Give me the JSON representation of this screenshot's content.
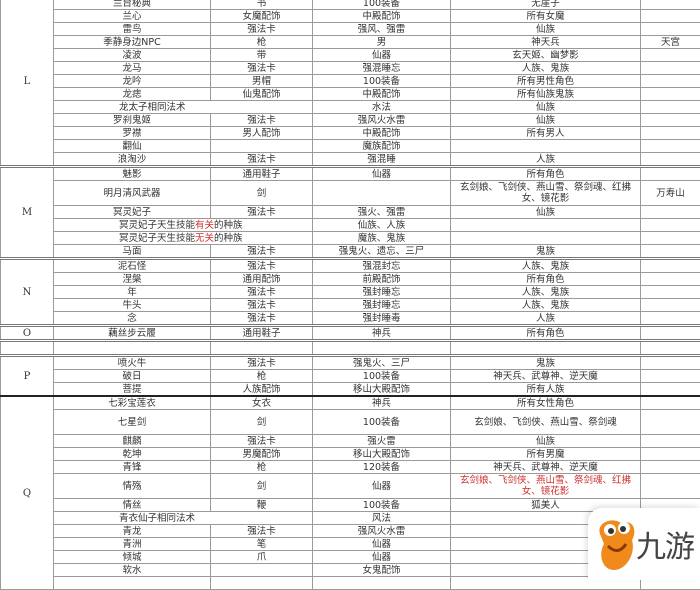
{
  "colors": {
    "highlight": "#d03030",
    "logo": "#f08a1c"
  },
  "watermark": {
    "logo_text": "九游"
  },
  "groups": [
    {
      "letter": "",
      "partial": true,
      "rows": [
        {
          "c": [
            "",
            "",
            "",
            "",
            ""
          ]
        }
      ]
    },
    {
      "letter": "L",
      "rows": [
        {
          "c": [
            "兰台秘典",
            "书",
            "100装备",
            "无崖子",
            ""
          ]
        },
        {
          "c": [
            "兰心",
            "女魔配饰",
            "中殿配饰",
            "所有女魔",
            ""
          ]
        },
        {
          "c": [
            "雷鸟",
            "强法卡",
            "强风、强雷",
            "仙族",
            ""
          ]
        },
        {
          "c": [
            "季静身边NPC",
            "枪",
            "男",
            "神天兵",
            "天宫"
          ]
        },
        {
          "c": [
            "凌波",
            "带",
            "仙器",
            "玄天姬、幽梦影",
            ""
          ]
        },
        {
          "c": [
            "龙马",
            "强法卡",
            "强混睡忘",
            "人族、鬼族",
            ""
          ]
        },
        {
          "c": [
            "龙吟",
            "男帽",
            "100装备",
            "所有男性角色",
            ""
          ]
        },
        {
          "c": [
            "龙痣",
            "仙鬼配饰",
            "中殿配饰",
            "所有仙族鬼族",
            ""
          ]
        },
        {
          "merge": true,
          "c": [
            "龙太子相同法术",
            "",
            "水法",
            "仙族",
            ""
          ]
        },
        {
          "c": [
            "罗刹鬼姬",
            "强法卡",
            "强风火水雷",
            "仙族",
            ""
          ]
        },
        {
          "c": [
            "罗襟",
            "男人配饰",
            "中殿配饰",
            "所有男人",
            ""
          ]
        },
        {
          "c": [
            "翻仙",
            "",
            "魔族配饰",
            "",
            ""
          ]
        },
        {
          "c": [
            "浪淘沙",
            "强法卡",
            "强混睡",
            "人族",
            ""
          ]
        }
      ]
    },
    {
      "letter": "M",
      "rows": [
        {
          "c": [
            "魅影",
            "通用鞋子",
            "仙器",
            "所有角色",
            ""
          ]
        },
        {
          "tall": true,
          "c": [
            "明月清风武器",
            "剑",
            "",
            "玄剑娘、飞剑侠、燕山雪、祭剑魂、红拂女、镜花影",
            "万寿山"
          ]
        },
        {
          "c": [
            "冥灵妃子",
            "强法卡",
            "强火、强雷",
            "仙族",
            ""
          ]
        },
        {
          "merge": true,
          "parts": [
            "冥灵妃子天生技能",
            "有关",
            "的种族"
          ],
          "c": [
            "",
            "",
            "仙族、人族",
            "",
            ""
          ]
        },
        {
          "merge": true,
          "parts": [
            "冥灵妃子天生技能",
            "无关",
            "的种族"
          ],
          "c": [
            "",
            "",
            "魔族、鬼族",
            "",
            ""
          ]
        },
        {
          "c": [
            "马面",
            "强法卡",
            "强鬼火、遗忘、三尸",
            "鬼族",
            ""
          ]
        }
      ]
    },
    {
      "letter": "N",
      "rows": [
        {
          "c": [
            "泥石怪",
            "强法卡",
            "强混封忘",
            "人族、鬼族",
            ""
          ]
        },
        {
          "c": [
            "涅槃",
            "通用配饰",
            "前殿配饰",
            "所有角色",
            ""
          ]
        },
        {
          "c": [
            "年",
            "强法卡",
            "强封睡忘",
            "人族、鬼族",
            ""
          ]
        },
        {
          "c": [
            "牛头",
            "强法卡",
            "强封睡忘",
            "人族、鬼族",
            ""
          ]
        },
        {
          "c": [
            "念",
            "强法卡",
            "强封睡毒",
            "人族",
            ""
          ]
        }
      ]
    },
    {
      "letter": "O",
      "rows": [
        {
          "c": [
            "藕丝步云履",
            "通用鞋子",
            "神兵",
            "所有角色",
            ""
          ]
        }
      ]
    },
    {
      "letter": "",
      "rows": [
        {
          "c": [
            "",
            "",
            "",
            "",
            ""
          ]
        }
      ]
    },
    {
      "letter": "P",
      "rows": [
        {
          "c": [
            "喷火牛",
            "强法卡",
            "强鬼火、三尸",
            "鬼族",
            ""
          ]
        },
        {
          "c": [
            "破日",
            "枪",
            "100装备",
            "神天兵、武尊神、逆天魔",
            ""
          ]
        },
        {
          "c": [
            "菩提",
            "人族配饰",
            "移山大殿配饰",
            "所有人族",
            ""
          ]
        }
      ]
    },
    {
      "letter": "Q",
      "thick": true,
      "rows": [
        {
          "c": [
            "七彩宝莲衣",
            "女衣",
            "神兵",
            "所有女性角色",
            ""
          ]
        },
        {
          "tall": true,
          "c": [
            "七星剑",
            "剑",
            "100装备",
            "玄剑娘、飞剑侠、燕山雪、祭剑魂",
            ""
          ]
        },
        {
          "c": [
            "麒麟",
            "强法卡",
            "强火雷",
            "仙族",
            ""
          ]
        },
        {
          "c": [
            "乾坤",
            "男魔配饰",
            "移山大殿配饰",
            "所有男魔",
            ""
          ]
        },
        {
          "c": [
            "青锋",
            "枪",
            "120装备",
            "神天兵、武尊神、逆天魔",
            ""
          ]
        },
        {
          "tall": true,
          "target_red": true,
          "c": [
            "情殇",
            "剑",
            "仙器",
            "玄剑娘、飞剑侠、燕山雪、祭剑魂、红拂女、镜花影",
            ""
          ]
        },
        {
          "c": [
            "情丝",
            "鞭",
            "100装备",
            "狐美人",
            ""
          ]
        },
        {
          "merge": true,
          "c": [
            "青衣仙子相同法术",
            "",
            "风法",
            "",
            ""
          ]
        },
        {
          "c": [
            "青龙",
            "强法卡",
            "强风火水雷",
            "",
            ""
          ]
        },
        {
          "c": [
            "青洲",
            "笔",
            "仙器",
            "",
            ""
          ]
        },
        {
          "c": [
            "倾城",
            "爪",
            "仙器",
            "",
            ""
          ]
        },
        {
          "c": [
            "软水",
            "",
            "女鬼配饰",
            "",
            ""
          ]
        },
        {
          "c": [
            "",
            "",
            "",
            "",
            ""
          ]
        }
      ]
    }
  ]
}
